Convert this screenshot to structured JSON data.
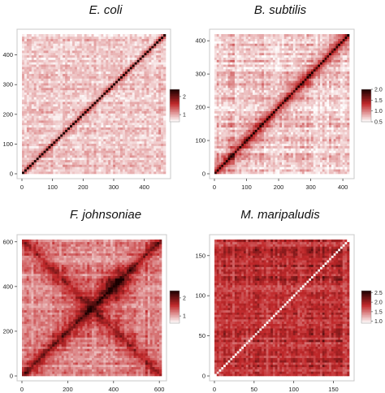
{
  "chart_data": [
    {
      "type": "heatmap",
      "title": "E. coli",
      "xlim": [
        0,
        470
      ],
      "ylim": [
        0,
        470
      ],
      "xticks": [
        0,
        100,
        200,
        300,
        400
      ],
      "yticks": [
        0,
        100,
        200,
        300,
        400
      ],
      "colorbar": {
        "ticks": [
          1,
          2
        ],
        "range": [
          0.6,
          2.4
        ]
      },
      "low_color": "#ffffff",
      "mid_color": "#c0282a",
      "high_color": "#1a0000",
      "grid": false,
      "legend_position": "right"
    },
    {
      "type": "heatmap",
      "title": "B. subtilis",
      "xlim": [
        0,
        420
      ],
      "ylim": [
        0,
        420
      ],
      "xticks": [
        0,
        100,
        200,
        300,
        400
      ],
      "yticks": [
        0,
        100,
        200,
        300,
        400
      ],
      "colorbar": {
        "ticks": [
          0.5,
          1.0,
          1.5,
          2.0
        ],
        "labels": [
          "0.5",
          "1.0",
          "1.5",
          "2.0"
        ],
        "range": [
          0.5,
          2.0
        ]
      },
      "low_color": "#ffffff",
      "mid_color": "#c0282a",
      "high_color": "#1a0000",
      "grid": false,
      "legend_position": "right"
    },
    {
      "type": "heatmap",
      "title": "F. johnsoniae",
      "xlim": [
        0,
        610
      ],
      "ylim": [
        0,
        610
      ],
      "xticks": [
        0,
        200,
        400,
        600
      ],
      "yticks": [
        0,
        200,
        400,
        600
      ],
      "colorbar": {
        "ticks": [
          1,
          2
        ],
        "range": [
          0.6,
          2.4
        ]
      },
      "low_color": "#ffffff",
      "mid_color": "#c0282a",
      "high_color": "#1a0000",
      "grid": false,
      "legend_position": "right"
    },
    {
      "type": "heatmap",
      "title": "M. maripaludis",
      "xlim": [
        0,
        170
      ],
      "ylim": [
        0,
        170
      ],
      "xticks": [
        0,
        50,
        100,
        150
      ],
      "yticks": [
        0,
        50,
        100,
        150
      ],
      "colorbar": {
        "ticks": [
          1.0,
          1.5,
          2.0,
          2.5
        ],
        "labels": [
          "1.0",
          "1.5",
          "2.0",
          "2.5"
        ],
        "range": [
          0.9,
          2.6
        ]
      },
      "low_color": "#ffffff",
      "mid_color": "#c0282a",
      "high_color": "#1a0000",
      "grid": false,
      "legend_position": "right"
    }
  ]
}
